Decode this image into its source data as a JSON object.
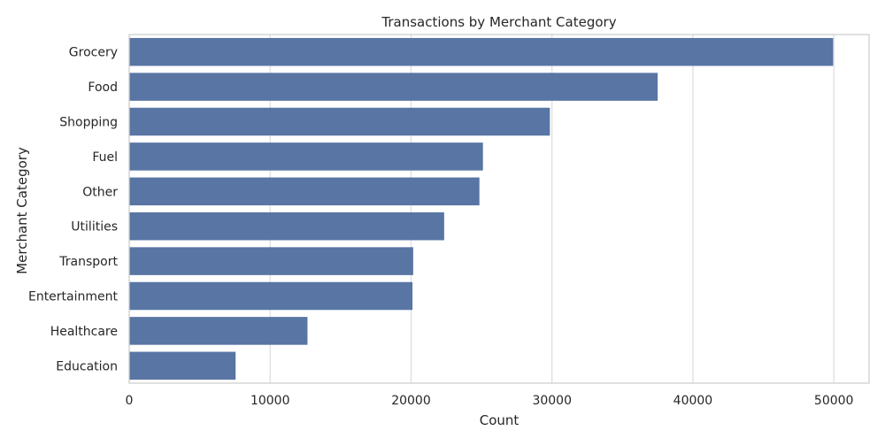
{
  "chart_data": {
    "type": "bar",
    "orientation": "horizontal",
    "title": "Transactions by Merchant Category",
    "xlabel": "Count",
    "ylabel": "Merchant Category",
    "categories": [
      "Grocery",
      "Food",
      "Shopping",
      "Fuel",
      "Other",
      "Utilities",
      "Transport",
      "Entertainment",
      "Healthcare",
      "Education"
    ],
    "values": [
      49950,
      37500,
      29850,
      25100,
      24850,
      22350,
      20150,
      20100,
      12650,
      7550
    ],
    "xlim": [
      0,
      52500
    ],
    "xticks": [
      0,
      10000,
      20000,
      30000,
      40000,
      50000
    ],
    "xtick_labels": [
      "0",
      "10000",
      "20000",
      "30000",
      "40000",
      "50000"
    ],
    "grid": "vertical",
    "bar_color": "#5875a4"
  }
}
